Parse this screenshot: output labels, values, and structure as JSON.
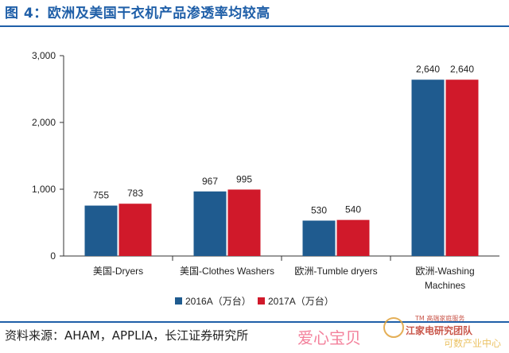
{
  "title": "图 4：欧洲及美国干衣机产品渗透率均较高",
  "source": "资料来源：AHAM，APPLIA，长江证券研究所",
  "watermark": {
    "text_pink": "爱心宝贝",
    "text_tm": "TM 高端家庭服务",
    "text_team": "江家电研究团队",
    "text_yellow": "可数产业中心"
  },
  "colors": {
    "series_2016": "#1f5b8f",
    "series_2017": "#d0192a",
    "title_blue": "#1f5fa8"
  },
  "chart_data": {
    "type": "bar",
    "categories": [
      "美国-Dryers",
      "美国-Clothes Washers",
      "欧洲-Tumble dryers",
      "欧洲-Washing Machines"
    ],
    "category_lines": [
      [
        "美国-Dryers"
      ],
      [
        "美国-Clothes Washers"
      ],
      [
        "欧洲-Tumble dryers"
      ],
      [
        "欧洲-Washing",
        "Machines"
      ]
    ],
    "series": [
      {
        "name": "2016A（万台）",
        "values": [
          755,
          967,
          530,
          2640
        ]
      },
      {
        "name": "2017A（万台）",
        "values": [
          783,
          995,
          540,
          2640
        ]
      }
    ],
    "data_labels": [
      [
        "755",
        "967",
        "530",
        "2,640"
      ],
      [
        "783",
        "995",
        "540",
        "2,640"
      ]
    ],
    "yticks": [
      0,
      1000,
      2000,
      3000
    ],
    "ytick_labels": [
      "0",
      "1,000",
      "2,000",
      "3,000"
    ],
    "ylim": [
      0,
      3000
    ],
    "grid": false,
    "legend_position": "bottom-center",
    "xlabel": "",
    "ylabel": ""
  }
}
